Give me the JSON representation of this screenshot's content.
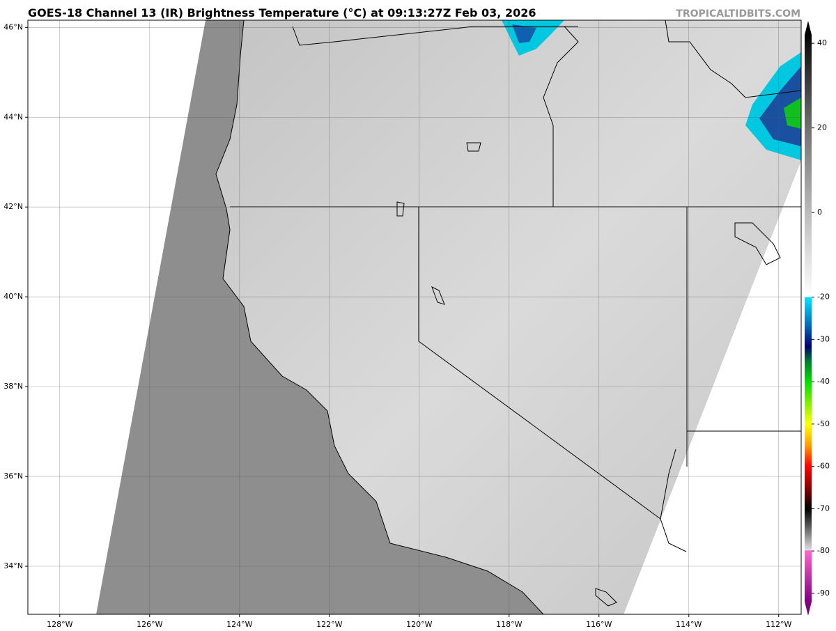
{
  "header": {
    "title": "GOES-18 Channel 13 (IR) Brightness Temperature (°C) at 09:13:27Z Feb 03, 2026",
    "source": "TROPICALTIDBITS.COM"
  },
  "map": {
    "xlim": [
      -128.71,
      -111.5
    ],
    "ylim": [
      32.93,
      46.16
    ],
    "lon_ticks": [
      {
        "value": -128,
        "label": "128°W"
      },
      {
        "value": -126,
        "label": "126°W"
      },
      {
        "value": -124,
        "label": "124°W"
      },
      {
        "value": -122,
        "label": "122°W"
      },
      {
        "value": -120,
        "label": "120°W"
      },
      {
        "value": -118,
        "label": "118°W"
      },
      {
        "value": -116,
        "label": "116°W"
      },
      {
        "value": -114,
        "label": "114°W"
      },
      {
        "value": -112,
        "label": "112°W"
      }
    ],
    "lat_ticks": [
      {
        "value": 34,
        "label": "34°N"
      },
      {
        "value": 36,
        "label": "36°N"
      },
      {
        "value": 38,
        "label": "38°N"
      },
      {
        "value": 40,
        "label": "40°N"
      },
      {
        "value": 42,
        "label": "42°N"
      },
      {
        "value": 44,
        "label": "44°N"
      },
      {
        "value": 46,
        "label": "46°N"
      }
    ]
  },
  "colorbar": {
    "lim": [
      -92,
      42
    ],
    "ticks": [
      40,
      20,
      0,
      -20,
      -30,
      -40,
      -50,
      -60,
      -70,
      -80,
      -90
    ]
  }
}
